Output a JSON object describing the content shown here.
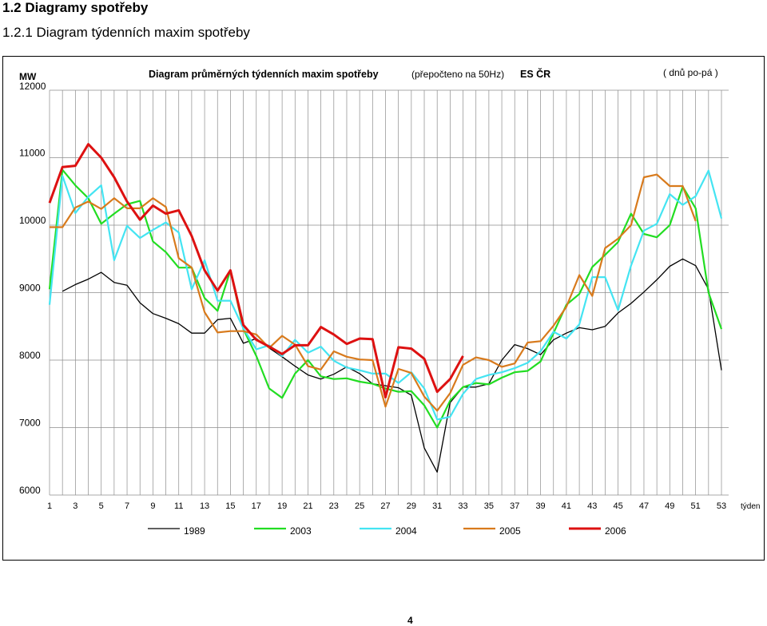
{
  "page": {
    "heading": "1.2 Diagramy spotřeby",
    "subheading": "1.2.1 Diagram týdenních maxim spotřeby",
    "page_number": "4"
  },
  "chart_data": {
    "type": "line",
    "title": "Diagram průměrných týdenních maxim spotřeby",
    "subtitle_note": "(přepočteno na 50Hz)",
    "system_label": "ES ČR",
    "days_note": "( dnů po-pá )",
    "ylabel": "MW",
    "xlabel": "týden",
    "ylim": [
      6000,
      12000
    ],
    "xlim": [
      1,
      53
    ],
    "yticks": [
      "12000",
      "11000",
      "10000",
      "9000",
      "8000",
      "7000",
      "6000"
    ],
    "xticks": [
      "1",
      "3",
      "5",
      "7",
      "9",
      "11",
      "13",
      "15",
      "17",
      "19",
      "21",
      "23",
      "25",
      "27",
      "29",
      "31",
      "33",
      "35",
      "37",
      "39",
      "41",
      "43",
      "45",
      "47",
      "49",
      "51",
      "53"
    ],
    "grid": true,
    "legend_position": "bottom",
    "series": [
      {
        "name": "1989",
        "color": "#000000",
        "width": 1.3,
        "start": 2,
        "values": [
          9020,
          9120,
          9200,
          9300,
          9150,
          9110,
          8850,
          8690,
          8620,
          8540,
          8400,
          8400,
          8600,
          8620,
          8250,
          8320,
          8180,
          8050,
          7910,
          7780,
          7720,
          7790,
          7900,
          7800,
          7650,
          7620,
          7590,
          7480,
          6700,
          6340,
          7370,
          7600,
          7600,
          7650,
          8000,
          8230,
          8170,
          8080,
          8300,
          8400,
          8480,
          8450,
          8500,
          8700,
          8840,
          9010,
          9190,
          9390,
          9500,
          9400,
          9050,
          7850
        ]
      },
      {
        "name": "2003",
        "color": "#22dd22",
        "width": 2.2,
        "start": 1,
        "values": [
          9050,
          10820,
          10590,
          10400,
          10020,
          10170,
          10310,
          10360,
          9760,
          9600,
          9370,
          9370,
          8920,
          8730,
          9330,
          8460,
          8060,
          7580,
          7440,
          7800,
          8000,
          7760,
          7720,
          7730,
          7680,
          7650,
          7580,
          7530,
          7540,
          7330,
          7000,
          7400,
          7600,
          7660,
          7640,
          7740,
          7820,
          7840,
          7980,
          8400,
          8820,
          8980,
          9380,
          9560,
          9750,
          10170,
          9870,
          9820,
          10000,
          10570,
          10250,
          9000,
          8460
        ]
      },
      {
        "name": "2004",
        "color": "#44e4f2",
        "width": 2.2,
        "start": 1,
        "values": [
          8820,
          10730,
          10180,
          10420,
          10590,
          9480,
          9990,
          9810,
          9930,
          10040,
          9890,
          9050,
          9480,
          8880,
          8880,
          8470,
          8160,
          8220,
          8060,
          8300,
          8110,
          8200,
          7990,
          7890,
          7850,
          7800,
          7800,
          7660,
          7820,
          7580,
          7120,
          7160,
          7500,
          7720,
          7780,
          7820,
          7880,
          7960,
          8130,
          8420,
          8320,
          8530,
          9230,
          9230,
          8740,
          9400,
          9920,
          10020,
          10460,
          10300,
          10430,
          10810,
          10100
        ]
      },
      {
        "name": "2005",
        "color": "#d87a1c",
        "width": 2.2,
        "start": 1,
        "values": [
          9970,
          9970,
          10260,
          10350,
          10240,
          10400,
          10250,
          10250,
          10400,
          10270,
          9510,
          9370,
          8710,
          8410,
          8430,
          8430,
          8380,
          8180,
          8360,
          8230,
          7910,
          7860,
          8130,
          8050,
          8010,
          8000,
          7310,
          7870,
          7810,
          7460,
          7250,
          7510,
          7930,
          8040,
          8000,
          7900,
          7950,
          8260,
          8280,
          8510,
          8790,
          9260,
          8950,
          9660,
          9800,
          10000,
          10710,
          10750,
          10580,
          10580,
          10060
        ]
      },
      {
        "name": "2006",
        "color": "#dd1111",
        "width": 3,
        "start": 1,
        "values": [
          10330,
          10860,
          10880,
          11200,
          11000,
          10710,
          10350,
          10080,
          10290,
          10170,
          10220,
          9840,
          9330,
          9030,
          9330,
          8520,
          8300,
          8200,
          8090,
          8220,
          8220,
          8490,
          8380,
          8240,
          8320,
          8310,
          7450,
          8190,
          8170,
          8020,
          7530,
          7720,
          8060
        ]
      }
    ]
  }
}
